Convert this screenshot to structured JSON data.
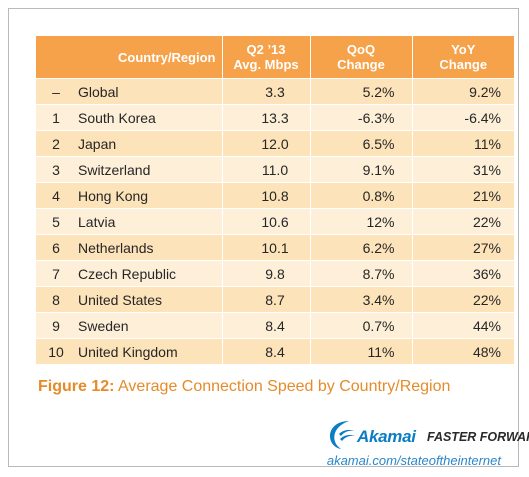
{
  "table": {
    "headers": {
      "rank": "",
      "country": "Country/Region",
      "speed_line1": "Q2 ’13",
      "speed_line2": "Avg. Mbps",
      "qoq_line1": "QoQ",
      "qoq_line2": "Change",
      "yoy_line1": "YoY",
      "yoy_line2": "Change"
    },
    "rows": [
      {
        "rank": "–",
        "country": "Global",
        "speed": "3.3",
        "qoq": "5.2%",
        "yoy": "9.2%"
      },
      {
        "rank": "1",
        "country": "South Korea",
        "speed": "13.3",
        "qoq": "-6.3%",
        "yoy": "-6.4%"
      },
      {
        "rank": "2",
        "country": "Japan",
        "speed": "12.0",
        "qoq": "6.5%",
        "yoy": "11%"
      },
      {
        "rank": "3",
        "country": "Switzerland",
        "speed": "11.0",
        "qoq": "9.1%",
        "yoy": "31%"
      },
      {
        "rank": "4",
        "country": "Hong Kong",
        "speed": "10.8",
        "qoq": "0.8%",
        "yoy": "21%"
      },
      {
        "rank": "5",
        "country": "Latvia",
        "speed": "10.6",
        "qoq": "12%",
        "yoy": "22%"
      },
      {
        "rank": "6",
        "country": "Netherlands",
        "speed": "10.1",
        "qoq": "6.2%",
        "yoy": "27%"
      },
      {
        "rank": "7",
        "country": "Czech Republic",
        "speed": "9.8",
        "qoq": "8.7%",
        "yoy": "36%"
      },
      {
        "rank": "8",
        "country": "United States",
        "speed": "8.7",
        "qoq": "3.4%",
        "yoy": "22%"
      },
      {
        "rank": "9",
        "country": "Sweden",
        "speed": "8.4",
        "qoq": "0.7%",
        "yoy": "44%"
      },
      {
        "rank": "10",
        "country": "United Kingdom",
        "speed": "8.4",
        "qoq": "11%",
        "yoy": "48%"
      }
    ]
  },
  "caption": {
    "figure_label": "Figure 12:",
    "text": " Average Connection Speed by Country/Region"
  },
  "branding": {
    "logo_text": "Akamai",
    "tagline": "FASTER FORWARD",
    "logo_icon": "akamai-wave-icon",
    "url": "akamai.com/stateoftheinternet"
  },
  "colors": {
    "header_bg": "#f5a24b",
    "row_odd": "#fde3ba",
    "row_even": "#fef0d8",
    "caption": "#e58b2a",
    "brand_blue": "#0b7dc4"
  }
}
